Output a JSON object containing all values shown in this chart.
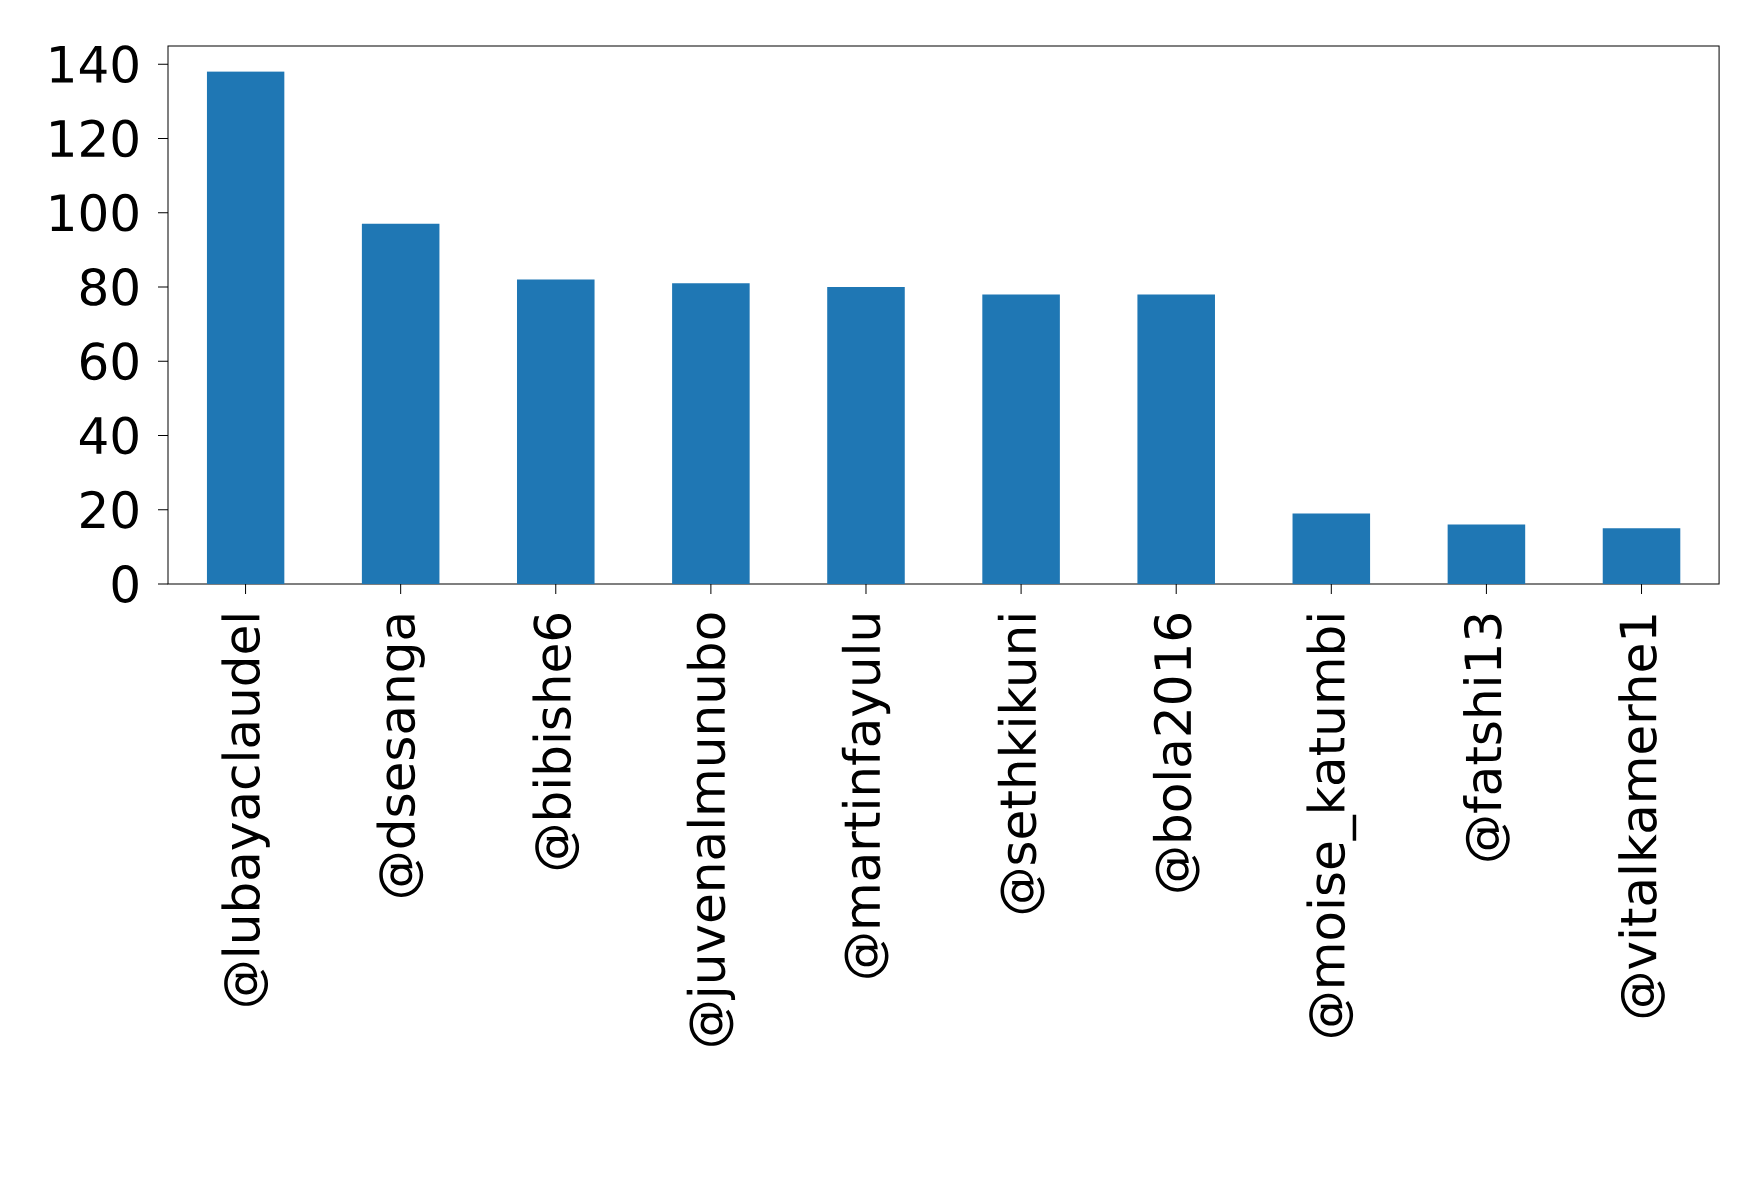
{
  "chart_data": {
    "type": "bar",
    "categories": [
      "@lubayaclaudel",
      "@dsesanga",
      "@bibishe6",
      "@juvenalmunubo",
      "@martinfayulu",
      "@sethkikuni",
      "@bola2016",
      "@moise_katumbi",
      "@fatshi13",
      "@vitalkamerhe1"
    ],
    "values": [
      138,
      97,
      82,
      81,
      80,
      78,
      78,
      19,
      16,
      15
    ],
    "color": "#1f77b4",
    "ylim": [
      0,
      144.9
    ],
    "yticks": [
      0,
      20,
      40,
      60,
      80,
      100,
      120,
      140
    ],
    "grid": false
  }
}
